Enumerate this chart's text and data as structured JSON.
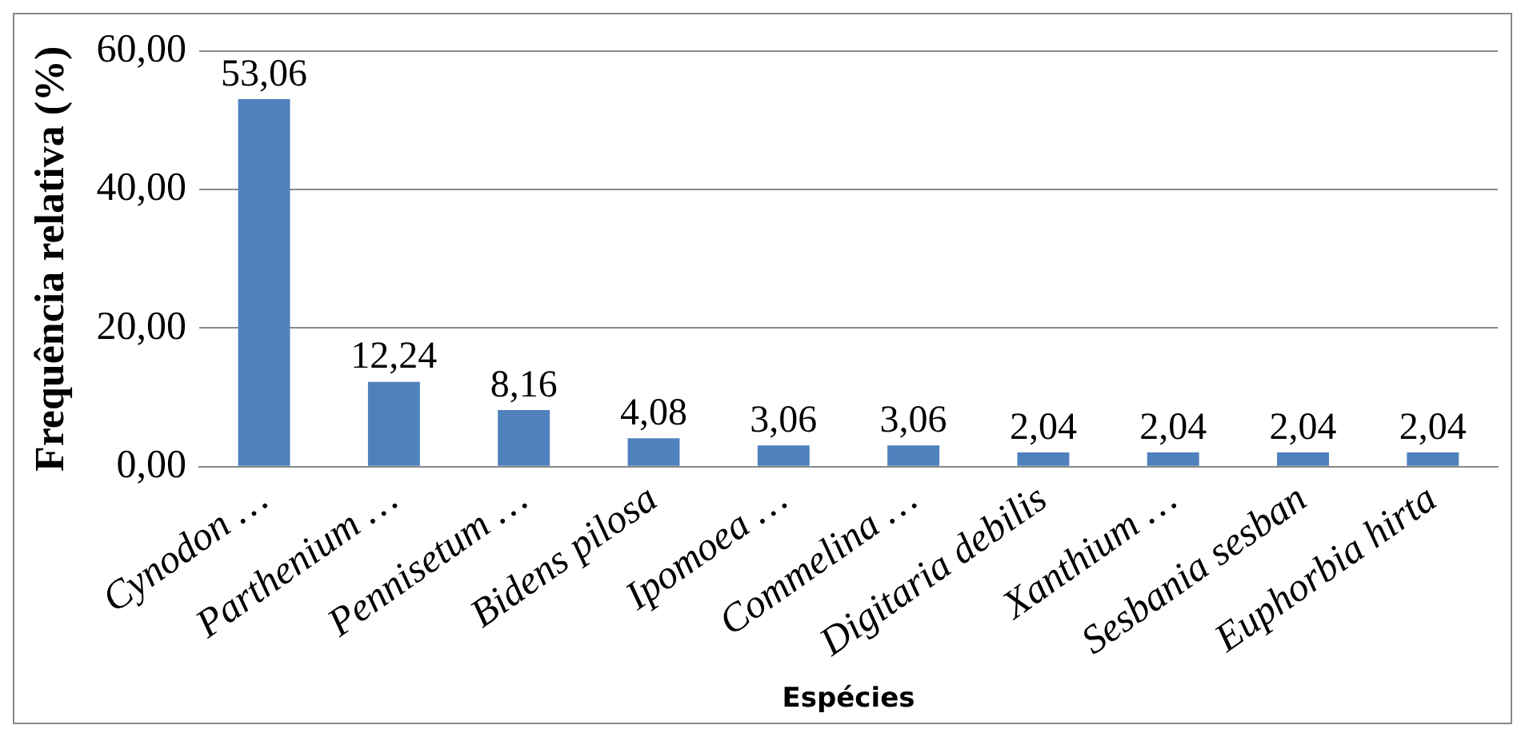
{
  "chart_data": {
    "type": "bar",
    "xlabel": "Espécies",
    "ylabel": "Frequência relativa (%)",
    "categories": [
      "Cynodon …",
      "Parthenium …",
      "Pennisetum …",
      "Bidens pilosa",
      "Ipomoea …",
      "Commelina …",
      "Digitaria debilis",
      "Xanthium …",
      "Sesbania sesban",
      "Euphorbia hirta"
    ],
    "values": [
      53.06,
      12.24,
      8.16,
      4.08,
      3.06,
      3.06,
      2.04,
      2.04,
      2.04,
      2.04
    ],
    "value_labels": [
      "53,06",
      "12,24",
      "8,16",
      "4,08",
      "3,06",
      "3,06",
      "2,04",
      "2,04",
      "2,04",
      "2,04"
    ],
    "color": "#4f81bd",
    "ylim": [
      0,
      60
    ],
    "yticks": [
      {
        "value": 0,
        "label": "0,00"
      },
      {
        "value": 20,
        "label": "20,00"
      },
      {
        "value": 40,
        "label": "40,00"
      },
      {
        "value": 60,
        "label": "60,00"
      }
    ],
    "grid": "y",
    "legend": false
  }
}
